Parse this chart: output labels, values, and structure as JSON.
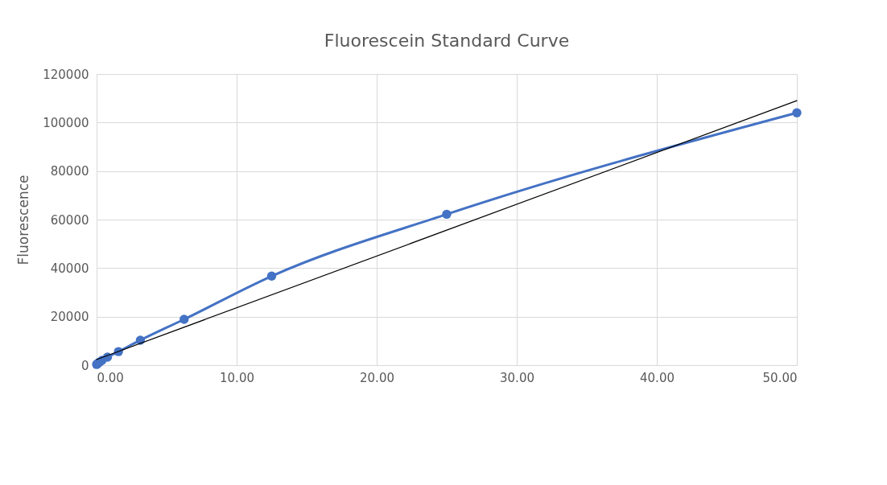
{
  "chart_data": {
    "type": "line",
    "title": "Fluorescein Standard Curve",
    "ylabel": "Fluorescence",
    "xlim": [
      0,
      50
    ],
    "xticks": [
      {
        "value": 0,
        "label": "0.00"
      },
      {
        "value": 10,
        "label": "10.00"
      },
      {
        "value": 20,
        "label": "20.00"
      },
      {
        "value": 30,
        "label": "30.00"
      },
      {
        "value": 40,
        "label": "40.00"
      },
      {
        "value": 50,
        "label": "50.00"
      }
    ],
    "ylim": [
      0,
      120000
    ],
    "yticks": [
      0,
      20000,
      40000,
      60000,
      80000,
      100000,
      120000
    ],
    "grid": true,
    "series": [
      {
        "color": "#4472c4",
        "marker": "circle",
        "line_style": "solid",
        "x": [
          0,
          0.049,
          0.098,
          0.195,
          0.39,
          0.78,
          1.5625,
          3.125,
          6.25,
          12.5,
          25,
          50
        ],
        "values": [
          300,
          500,
          800,
          1200,
          2000,
          3300,
          5600,
          10300,
          18900,
          36700,
          62200,
          104000
        ]
      },
      {
        "color": "#000000",
        "marker": "none",
        "line_style": "solid",
        "x": [
          0,
          50
        ],
        "values": [
          2300,
          109000
        ]
      }
    ]
  }
}
